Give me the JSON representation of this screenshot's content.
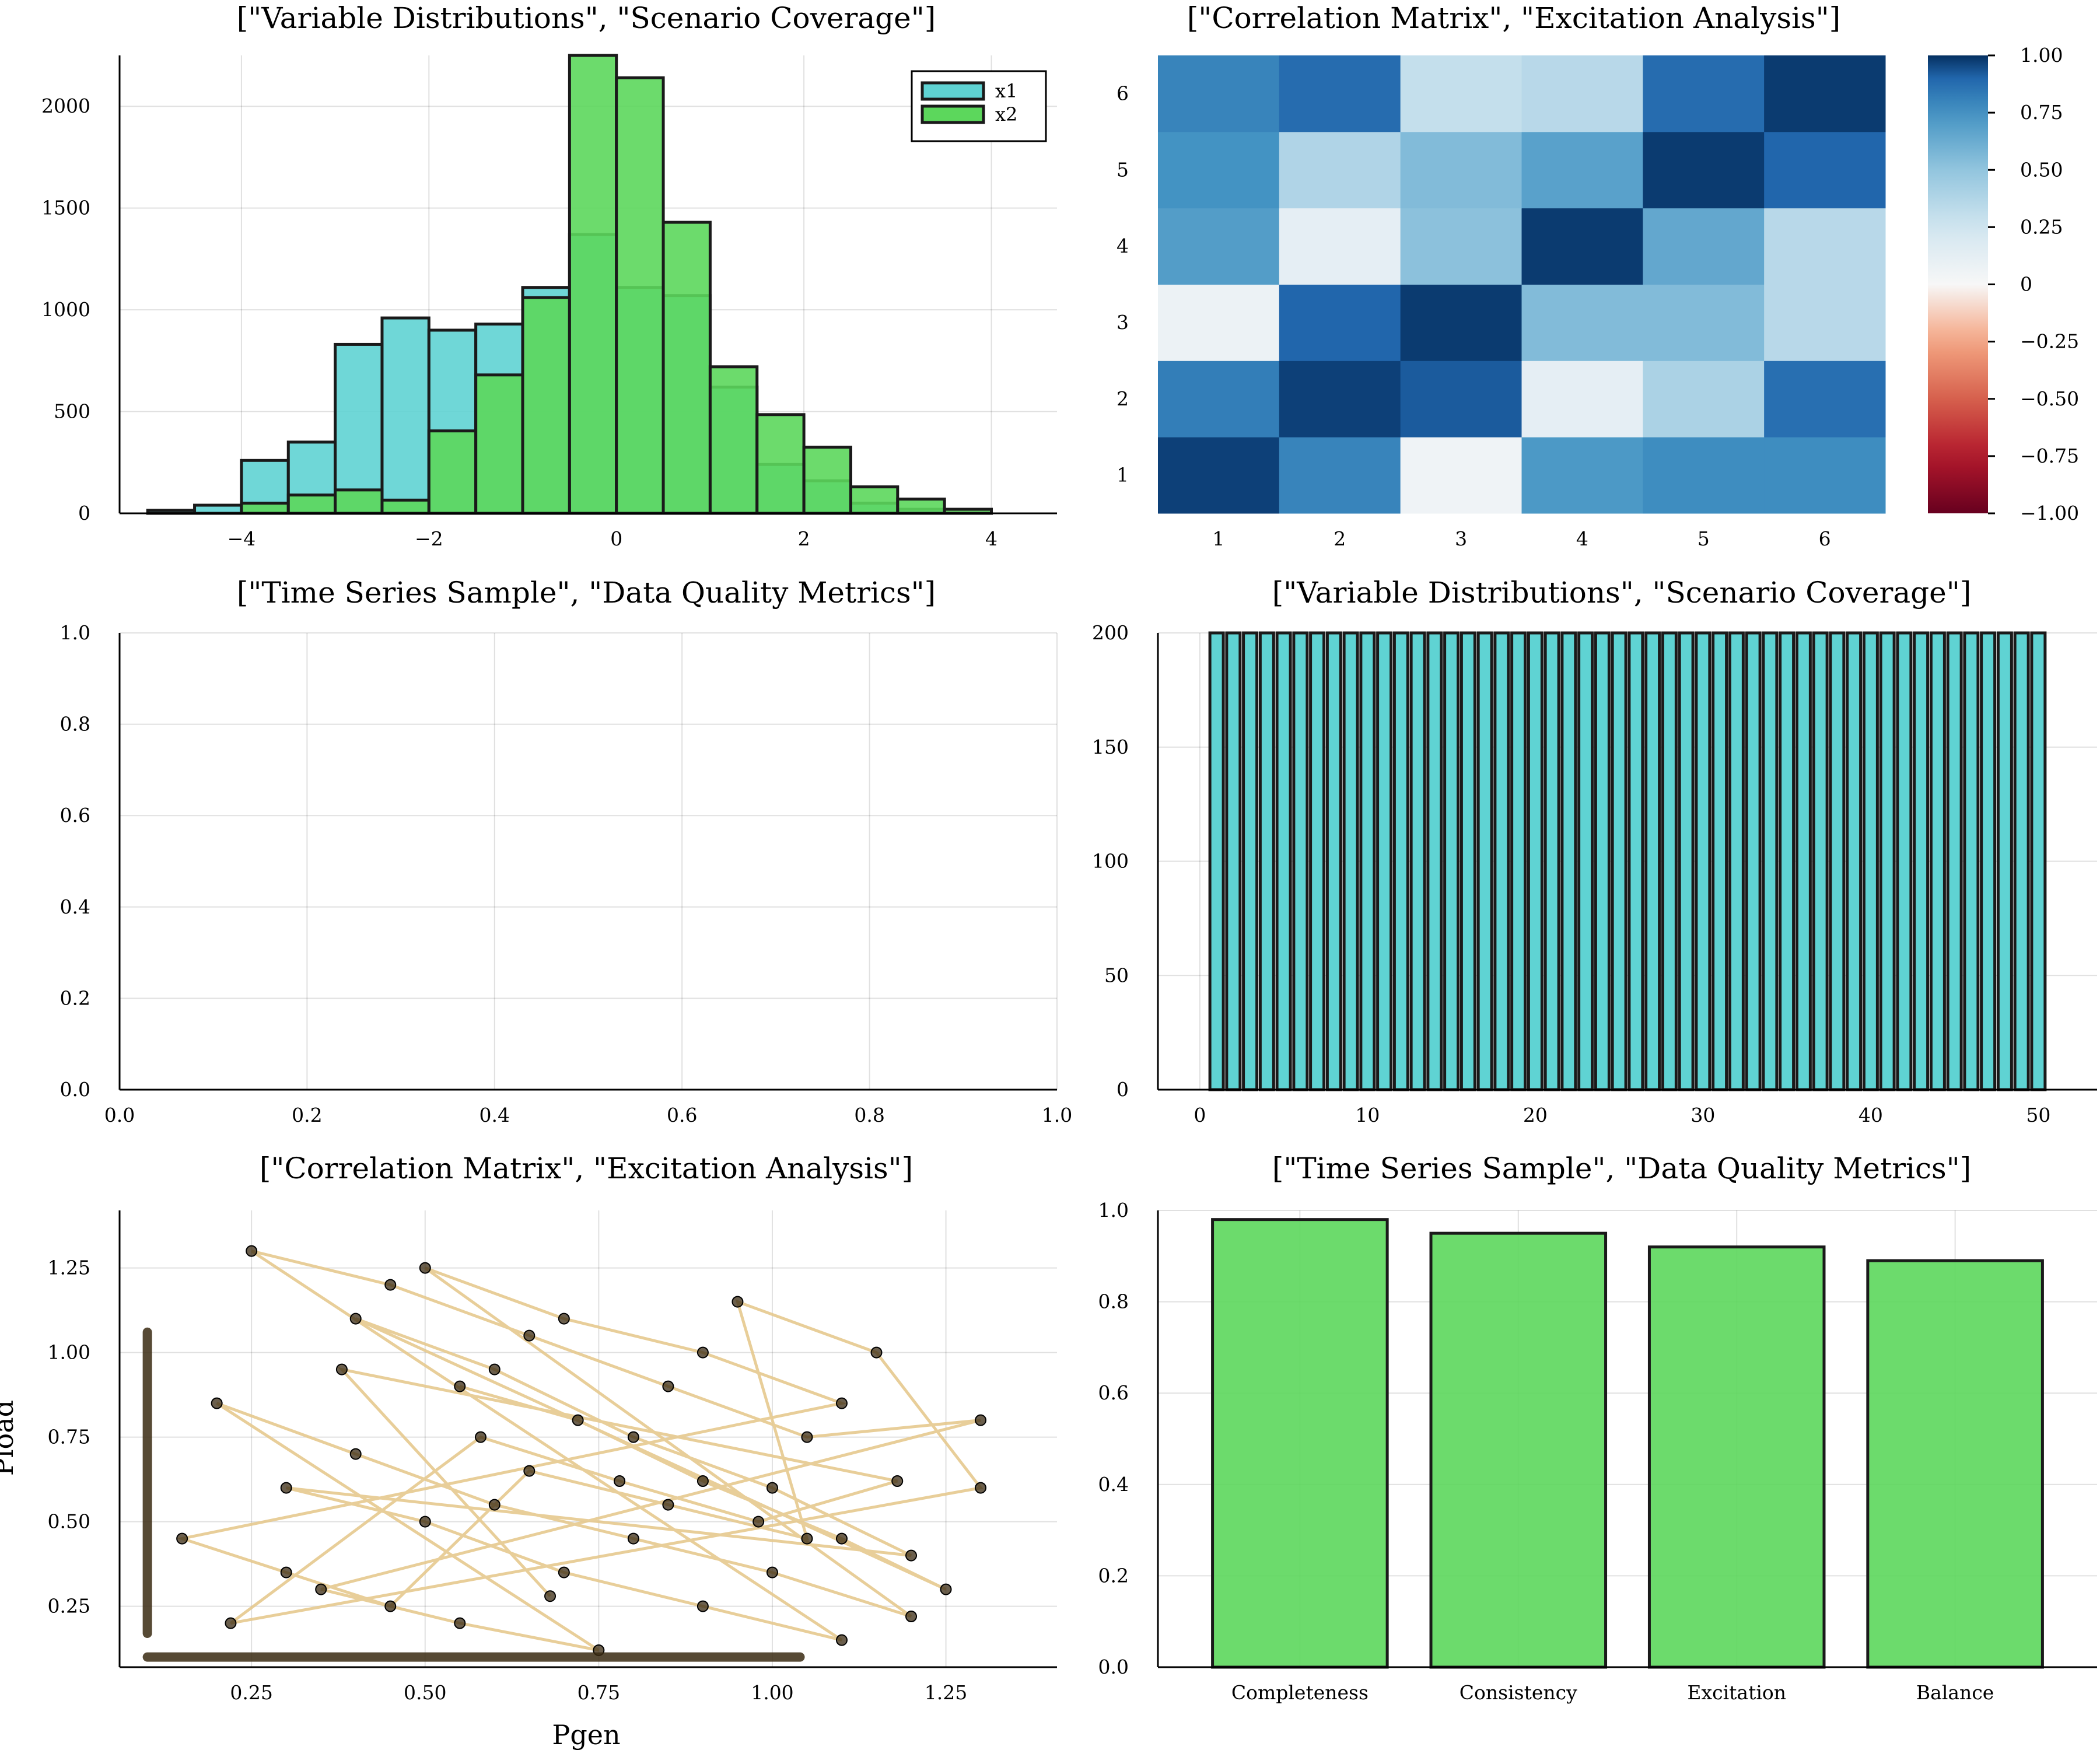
{
  "chart_data": [
    {
      "id": "p1",
      "type": "bar",
      "title": "[\"Variable Distributions\", \"Scenario Coverage\"]",
      "bin_width": 0.5,
      "xlim": [
        -5.3,
        4.7
      ],
      "ylim": [
        0,
        2250
      ],
      "xticks": [
        -4,
        -2,
        0,
        2,
        4
      ],
      "xtick_labels": [
        "−4",
        "−2",
        "0",
        "2",
        "4"
      ],
      "yticks": [
        0,
        500,
        1000,
        1500,
        2000
      ],
      "legend_position": "top-right",
      "series": [
        {
          "name": "x1",
          "color": "#5fd3d3",
          "bin_starts": [
            -5.0,
            -4.5,
            -4.0,
            -3.5,
            -3.0,
            -2.5,
            -2.0,
            -1.5,
            -1.0,
            -0.5,
            0.0,
            0.5,
            1.0,
            1.5,
            2.0,
            2.5,
            3.0
          ],
          "values": [
            15,
            40,
            260,
            350,
            830,
            960,
            900,
            930,
            1110,
            1370,
            1110,
            1070,
            620,
            240,
            160,
            50,
            20
          ]
        },
        {
          "name": "x2",
          "color": "#5cd75c",
          "bin_starts": [
            -5.0,
            -4.5,
            -4.0,
            -3.5,
            -3.0,
            -2.5,
            -2.0,
            -1.5,
            -1.0,
            -0.5,
            0.0,
            0.5,
            1.0,
            1.5,
            2.0,
            2.5,
            3.0,
            3.5
          ],
          "values": [
            0,
            0,
            50,
            90,
            115,
            65,
            405,
            680,
            1060,
            2250,
            2140,
            1430,
            720,
            485,
            325,
            130,
            70,
            20
          ]
        }
      ]
    },
    {
      "id": "p2",
      "type": "heatmap",
      "title": "[\"Correlation Matrix\", \"Excitation Analysis\"]",
      "x_labels": [
        "1",
        "2",
        "3",
        "4",
        "5",
        "6"
      ],
      "y_labels": [
        "1",
        "2",
        "3",
        "4",
        "5",
        "6"
      ],
      "values": [
        [
          0.97,
          0.8,
          0.05,
          0.72,
          0.77,
          0.77
        ],
        [
          0.82,
          0.97,
          0.92,
          0.12,
          0.4,
          0.87
        ],
        [
          0.07,
          0.9,
          0.98,
          0.55,
          0.55,
          0.35
        ],
        [
          0.7,
          0.12,
          0.52,
          0.98,
          0.65,
          0.35
        ],
        [
          0.75,
          0.38,
          0.55,
          0.68,
          0.98,
          0.9
        ],
        [
          0.8,
          0.88,
          0.3,
          0.35,
          0.88,
          0.98
        ]
      ],
      "colorbar": {
        "min": -1.0,
        "max": 1.0,
        "ticks": [
          1.0,
          0.75,
          0.5,
          0.25,
          0,
          -0.25,
          -0.5,
          -0.75,
          -1.0
        ],
        "tick_labels": [
          "1.00",
          "0.75",
          "0.50",
          "0.25",
          "0",
          "−0.25",
          "−0.50",
          "−0.75",
          "−1.00"
        ]
      }
    },
    {
      "id": "p3",
      "type": "line",
      "title": "[\"Time Series Sample\", \"Data Quality Metrics\"]",
      "xlim": [
        0,
        1
      ],
      "ylim": [
        0,
        1
      ],
      "xticks": [
        0.0,
        0.2,
        0.4,
        0.6,
        0.8,
        1.0
      ],
      "xtick_labels": [
        "0.0",
        "0.2",
        "0.4",
        "0.6",
        "0.8",
        "1.0"
      ],
      "yticks": [
        0.0,
        0.2,
        0.4,
        0.6,
        0.8,
        1.0
      ],
      "ytick_labels": [
        "0.0",
        "0.2",
        "0.4",
        "0.6",
        "0.8",
        "1.0"
      ],
      "series": []
    },
    {
      "id": "p4",
      "type": "bar",
      "title": "[\"Variable Distributions\", \"Scenario Coverage\"]",
      "color": "#5fd3d3",
      "x": [
        1,
        2,
        3,
        4,
        5,
        6,
        7,
        8,
        9,
        10,
        11,
        12,
        13,
        14,
        15,
        16,
        17,
        18,
        19,
        20,
        21,
        22,
        23,
        24,
        25,
        26,
        27,
        28,
        29,
        30,
        31,
        32,
        33,
        34,
        35,
        36,
        37,
        38,
        39,
        40,
        41,
        42,
        43,
        44,
        45,
        46,
        47,
        48,
        49,
        50
      ],
      "values": [
        200,
        200,
        200,
        200,
        200,
        200,
        200,
        200,
        200,
        200,
        200,
        200,
        200,
        200,
        200,
        200,
        200,
        200,
        200,
        200,
        200,
        200,
        200,
        200,
        200,
        200,
        200,
        200,
        200,
        200,
        200,
        200,
        200,
        200,
        200,
        200,
        200,
        200,
        200,
        200,
        200,
        200,
        200,
        200,
        200,
        200,
        200,
        200,
        200,
        200
      ],
      "xlim": [
        -2.5,
        53.5
      ],
      "ylim": [
        0,
        200
      ],
      "xticks": [
        0,
        10,
        20,
        30,
        40,
        50
      ],
      "yticks": [
        0,
        50,
        100,
        150,
        200
      ]
    },
    {
      "id": "p5",
      "type": "scatter",
      "title": "[\"Correlation Matrix\", \"Excitation Analysis\"]",
      "xlabel": "Pgen",
      "ylabel": "Pload",
      "xlim": [
        0.06,
        1.41
      ],
      "ylim": [
        0.07,
        1.42
      ],
      "xticks": [
        0.25,
        0.5,
        0.75,
        1.0,
        1.25
      ],
      "xtick_labels": [
        "0.25",
        "0.50",
        "0.75",
        "1.00",
        "1.25"
      ],
      "yticks": [
        0.25,
        0.5,
        0.75,
        1.0,
        1.25
      ],
      "ytick_labels": [
        "0.25",
        "0.50",
        "0.75",
        "1.00",
        "1.25"
      ],
      "line_color": "#e6c98e",
      "marker_color": "#3a2a12",
      "points": [
        [
          0.55,
          0.9
        ],
        [
          0.72,
          0.8
        ],
        [
          0.9,
          0.62
        ],
        [
          1.1,
          0.45
        ],
        [
          1.25,
          0.3
        ],
        [
          0.4,
          1.1
        ],
        [
          0.6,
          0.95
        ],
        [
          0.8,
          0.75
        ],
        [
          1.0,
          0.6
        ],
        [
          1.2,
          0.4
        ],
        [
          0.3,
          0.6
        ],
        [
          0.5,
          0.5
        ],
        [
          0.7,
          0.35
        ],
        [
          0.9,
          0.25
        ],
        [
          1.1,
          0.15
        ],
        [
          0.25,
          1.3
        ],
        [
          0.45,
          1.2
        ],
        [
          0.65,
          1.05
        ],
        [
          0.85,
          0.9
        ],
        [
          1.05,
          0.75
        ],
        [
          1.3,
          0.8
        ],
        [
          0.35,
          0.3
        ],
        [
          0.55,
          0.2
        ],
        [
          0.75,
          0.12
        ],
        [
          0.2,
          0.85
        ],
        [
          0.4,
          0.7
        ],
        [
          0.6,
          0.55
        ],
        [
          0.8,
          0.45
        ],
        [
          1.0,
          0.35
        ],
        [
          1.2,
          0.22
        ],
        [
          0.5,
          1.25
        ],
        [
          0.7,
          1.1
        ],
        [
          0.9,
          1.0
        ],
        [
          1.1,
          0.85
        ],
        [
          0.15,
          0.45
        ],
        [
          0.3,
          0.35
        ],
        [
          0.45,
          0.25
        ],
        [
          0.65,
          0.65
        ],
        [
          0.85,
          0.55
        ],
        [
          1.05,
          0.45
        ],
        [
          0.95,
          1.15
        ],
        [
          1.15,
          1.0
        ],
        [
          1.3,
          0.6
        ],
        [
          0.22,
          0.2
        ],
        [
          0.58,
          0.75
        ],
        [
          0.78,
          0.62
        ],
        [
          0.98,
          0.5
        ],
        [
          1.18,
          0.62
        ],
        [
          0.38,
          0.95
        ],
        [
          0.68,
          0.28
        ]
      ],
      "edge_points": {
        "left_x": 0.1,
        "left_y_range": [
          0.17,
          1.06
        ],
        "bottom_y": 0.1,
        "bottom_x_range": [
          0.1,
          1.04
        ]
      }
    },
    {
      "id": "p6",
      "type": "bar",
      "title": "[\"Time Series Sample\", \"Data Quality Metrics\"]",
      "color": "#5cd75c",
      "categories": [
        "Completeness",
        "Consistency",
        "Excitation",
        "Balance"
      ],
      "values": [
        0.98,
        0.95,
        0.92,
        0.89
      ],
      "ylim": [
        0,
        1
      ],
      "yticks": [
        0.0,
        0.2,
        0.4,
        0.6,
        0.8,
        1.0
      ],
      "ytick_labels": [
        "0.0",
        "0.2",
        "0.4",
        "0.6",
        "0.8",
        "1.0"
      ]
    }
  ]
}
